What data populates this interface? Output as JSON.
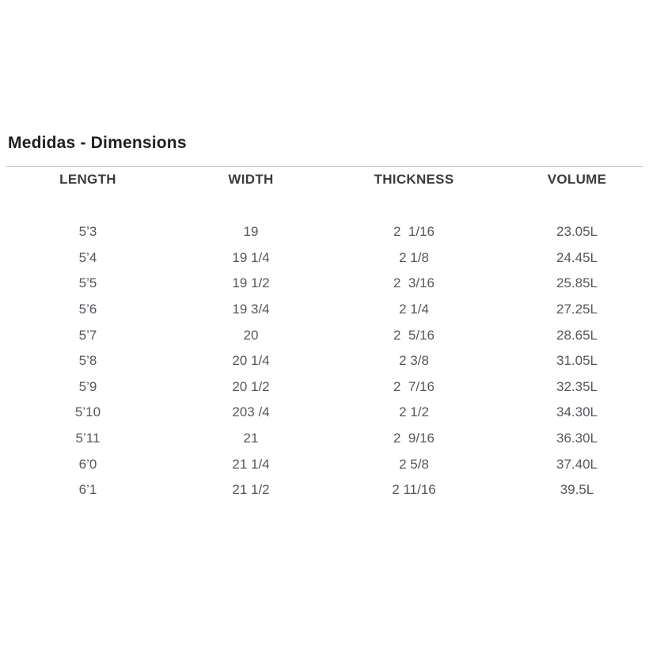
{
  "page": {
    "title": "Medidas - Dimensions"
  },
  "table": {
    "headers": [
      "LENGTH",
      "WIDTH",
      "THICKNESS",
      "VOLUME"
    ],
    "rows": [
      [
        "5’3",
        "19",
        "2  1/16",
        "23.05L"
      ],
      [
        "5’4",
        "19 1/4",
        "2 1/8",
        "24.45L"
      ],
      [
        "5’5",
        "19 1/2",
        "2  3/16",
        "25.85L"
      ],
      [
        "5’6",
        "19 3/4",
        "2 1/4",
        "27.25L"
      ],
      [
        "5’7",
        "20",
        "2  5/16",
        "28.65L"
      ],
      [
        "5’8",
        "20 1/4",
        "2 3/8",
        "31.05L"
      ],
      [
        "5’9",
        "20 1/2",
        "2  7/16",
        "32.35L"
      ],
      [
        "5’10",
        "203 /4",
        "2 1/2",
        "34.30L"
      ],
      [
        "5’11",
        "21",
        "2  9/16",
        "36.30L"
      ],
      [
        "6’0",
        "21 1/4",
        "2 5/8",
        "37.40L"
      ],
      [
        "6’1",
        "21 1/2",
        "2 11/16",
        "39.5L"
      ]
    ]
  },
  "colors": {
    "title_color": "#1f1f1f",
    "header_color": "#3b3c3e",
    "text_color": "#55575c",
    "divider_color": "#c6c6c6",
    "bg_color": "#ffffff"
  }
}
